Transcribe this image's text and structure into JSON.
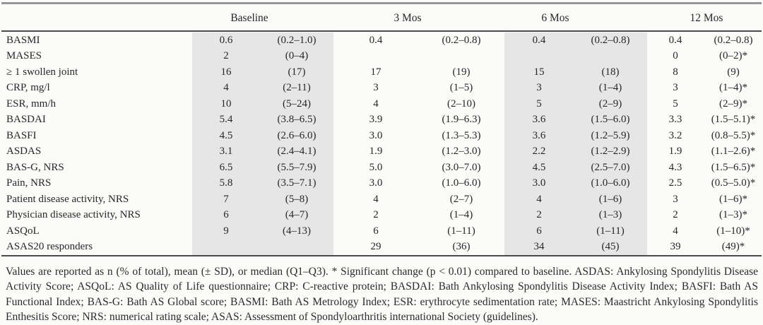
{
  "colors": {
    "column_shading": "#e6e6e6",
    "rule_light": "#979797",
    "rule_dark": "#4b4b4b",
    "text": "#272727",
    "background": "#fbfbfa"
  },
  "table": {
    "headers": [
      "Baseline",
      "3 Mos",
      "6 Mos",
      "12 Mos"
    ],
    "rows": [
      {
        "label": "BASMI",
        "baseline": [
          "0.6",
          "(0.2–1.0)"
        ],
        "m3": [
          "0.4",
          "(0.2–0.8)"
        ],
        "m6": [
          "0.4",
          "(0.2–0.8)"
        ],
        "m12": [
          "0.4",
          "(0.2–0.8)"
        ]
      },
      {
        "label": "MASES",
        "baseline": [
          "2",
          "(0–4)"
        ],
        "m3": [
          "",
          ""
        ],
        "m6": [
          "",
          ""
        ],
        "m12": [
          "0",
          "(0–2)*"
        ]
      },
      {
        "label": "≥ 1 swollen joint",
        "baseline": [
          "16",
          "(17)"
        ],
        "m3": [
          "17",
          "(19)"
        ],
        "m6": [
          "15",
          "(18)"
        ],
        "m12": [
          "8",
          "(9)"
        ]
      },
      {
        "label": "CRP, mg/l",
        "baseline": [
          "4",
          "(2–11)"
        ],
        "m3": [
          "3",
          "(1–5)"
        ],
        "m6": [
          "3",
          "(1–4)"
        ],
        "m12": [
          "3",
          "(1–4)*"
        ]
      },
      {
        "label": "ESR, mm/h",
        "baseline": [
          "10",
          "(5–24)"
        ],
        "m3": [
          "4",
          "(2–10)"
        ],
        "m6": [
          "5",
          "(2–9)"
        ],
        "m12": [
          "5",
          "(2–9)*"
        ]
      },
      {
        "label": "BASDAI",
        "baseline": [
          "5.4",
          "(3.8–6.5)"
        ],
        "m3": [
          "3.9",
          "(1.9–6.3)"
        ],
        "m6": [
          "3.6",
          "(1.5–6.0)"
        ],
        "m12": [
          "3.3",
          "(1.5–5.1)*"
        ]
      },
      {
        "label": "BASFI",
        "baseline": [
          "4.5",
          "(2.6–6.0)"
        ],
        "m3": [
          "3.0",
          "(1.3–5.3)"
        ],
        "m6": [
          "3.6",
          "(1.2–5.9)"
        ],
        "m12": [
          "3.2",
          "(0.8–5.5)*"
        ]
      },
      {
        "label": "ASDAS",
        "baseline": [
          "3.1",
          "(2.4–4.1)"
        ],
        "m3": [
          "1.9",
          "(1.2–3.0)"
        ],
        "m6": [
          "2.2",
          "(1.2–2.9)"
        ],
        "m12": [
          "1.9",
          "(1.1–2.6)*"
        ]
      },
      {
        "label": "BAS-G, NRS",
        "baseline": [
          "6.5",
          "(5.5–7.9)"
        ],
        "m3": [
          "5.0",
          "(3.0–7.0)"
        ],
        "m6": [
          "4.5",
          "(2.5–7.0)"
        ],
        "m12": [
          "4.3",
          "(1.5–6.5)*"
        ]
      },
      {
        "label": "Pain, NRS",
        "baseline": [
          "5.8",
          "(3.5–7.1)"
        ],
        "m3": [
          "3.0",
          "(1.0–6.0)"
        ],
        "m6": [
          "3.0",
          "(1.0–6.0)"
        ],
        "m12": [
          "2.5",
          "(0.5–5.0)*"
        ]
      },
      {
        "label": "Patient disease activity, NRS",
        "baseline": [
          "7",
          "(5–8)"
        ],
        "m3": [
          "4",
          "(2–7)"
        ],
        "m6": [
          "4",
          "(1–6)"
        ],
        "m12": [
          "3",
          "(1–6)*"
        ]
      },
      {
        "label": "Physician disease activity, NRS",
        "baseline": [
          "6",
          "(4–7)"
        ],
        "m3": [
          "2",
          "(1–4)"
        ],
        "m6": [
          "2",
          "(1–3)"
        ],
        "m12": [
          "2",
          "(1–3)*"
        ]
      },
      {
        "label": "ASQoL",
        "baseline": [
          "9",
          "(4–13)"
        ],
        "m3": [
          "6",
          "(1–11)"
        ],
        "m6": [
          "6",
          "(1–11)"
        ],
        "m12": [
          "4",
          "(1–10)*"
        ]
      },
      {
        "label": "ASAS20 responders",
        "baseline": [
          "",
          ""
        ],
        "m3": [
          "29",
          "(36)"
        ],
        "m6": [
          "34",
          "(45)"
        ],
        "m12": [
          "39",
          "(49)*"
        ]
      }
    ]
  },
  "footnote": "Values are reported as n (% of total), mean (± SD), or median (Q1–Q3). * Significant change (p < 0.01) compared to baseline. ASDAS: Ankylosing Spondylitis Disease Activity Score; ASQoL: AS Quality of Life questionnaire; CRP: C-reactive protein; BASDAI: Bath Ankylosing Spondylitis Disease Activity Index; BASFI: Bath AS Functional Index; BAS-G: Bath AS Global score; BASMI: Bath AS Metrology Index; ESR: erythrocyte sedimentation rate; MASES: Maastricht Ankylosing Spondylitis Enthesitis Score; NRS: numerical rating scale; ASAS: Assessment of Spondyloarthritis international Society  (guidelines)."
}
